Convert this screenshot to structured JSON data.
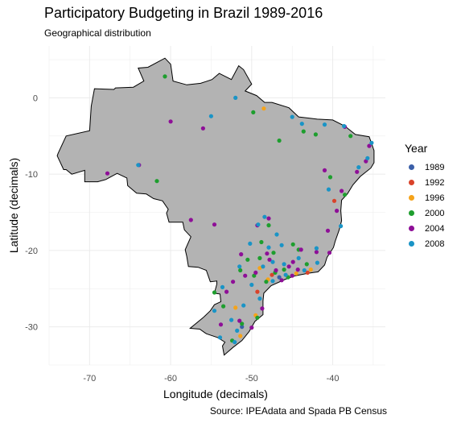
{
  "chart_data": {
    "type": "scatter",
    "title": "Participatory Budgeting in Brazil 1989-2016",
    "subtitle": "Geographical distribution",
    "caption": "Source: IPEAdata and Spada PB Census",
    "xlabel": "Longitude (decimals)",
    "ylabel": "Latitude (decimals)",
    "xlim": [
      -75,
      -33.5
    ],
    "ylim": [
      -35,
      6.8
    ],
    "x_ticks": [
      -70,
      -60,
      -50,
      -40
    ],
    "y_ticks": [
      0,
      -10,
      -20,
      -30
    ],
    "grid": true,
    "legend_title": "Year",
    "legend_position": "right",
    "series": [
      {
        "name": "1989",
        "color": "#3B5FA8",
        "points": [
          [
            -46.6,
            -23.5
          ],
          [
            -51.2,
            -30.0
          ]
        ]
      },
      {
        "name": "1992",
        "color": "#D9432A",
        "points": [
          [
            -39.8,
            -13.5
          ],
          [
            -47.5,
            -23.2
          ],
          [
            -49.3,
            -25.4
          ],
          [
            -43.1,
            -22.9
          ]
        ]
      },
      {
        "name": "1996",
        "color": "#F5A31A",
        "points": [
          [
            -48.5,
            -1.4
          ],
          [
            -49.0,
            -22.3
          ],
          [
            -48.0,
            -23.8
          ],
          [
            -52.0,
            -27.5
          ],
          [
            -44.5,
            -23.0
          ],
          [
            -51.4,
            -31.2
          ],
          [
            -42.7,
            -22.5
          ],
          [
            -49.5,
            -28.5
          ]
        ]
      },
      {
        "name": "2000",
        "color": "#1E9E2E",
        "points": [
          [
            -60.7,
            2.8
          ],
          [
            -49.8,
            -1.9
          ],
          [
            -46.6,
            -5.6
          ],
          [
            -43.6,
            -4.4
          ],
          [
            -42.1,
            -4.8
          ],
          [
            -37.8,
            -5.0
          ],
          [
            -40.3,
            -10.4
          ],
          [
            -38.5,
            -12.7
          ],
          [
            -61.7,
            -10.9
          ],
          [
            -47.9,
            -16.7
          ],
          [
            -48.8,
            -18.9
          ],
          [
            -44.2,
            -19.9
          ],
          [
            -47.3,
            -20.3
          ],
          [
            -49.0,
            -21.0
          ],
          [
            -43.2,
            -21.8
          ],
          [
            -46.0,
            -22.5
          ],
          [
            -47.1,
            -22.9
          ],
          [
            -49.7,
            -23.3
          ],
          [
            -45.5,
            -23.5
          ],
          [
            -51.4,
            -22.6
          ],
          [
            -48.2,
            -24.1
          ],
          [
            -54.6,
            -25.5
          ],
          [
            -53.5,
            -27.3
          ],
          [
            -51.2,
            -29.6
          ],
          [
            -52.4,
            -31.8
          ],
          [
            -49.3,
            -28.8
          ],
          [
            -50.5,
            -21.2
          ],
          [
            -44.9,
            -19.2
          ]
        ]
      },
      {
        "name": "2004",
        "color": "#8E0F97",
        "points": [
          [
            -60.0,
            -3.1
          ],
          [
            -56.0,
            -4.0
          ],
          [
            -38.5,
            -3.8
          ],
          [
            -35.5,
            -6.3
          ],
          [
            -35.9,
            -8.3
          ],
          [
            -37.0,
            -9.7
          ],
          [
            -41.0,
            -9.5
          ],
          [
            -38.9,
            -12.2
          ],
          [
            -39.5,
            -14.8
          ],
          [
            -40.6,
            -17.4
          ],
          [
            -63.9,
            -8.8
          ],
          [
            -67.8,
            -9.9
          ],
          [
            -54.6,
            -16.6
          ],
          [
            -57.5,
            -16.0
          ],
          [
            -49.3,
            -16.7
          ],
          [
            -47.9,
            -15.8
          ],
          [
            -51.3,
            -20.5
          ],
          [
            -47.8,
            -21.2
          ],
          [
            -44.9,
            -21.5
          ],
          [
            -42.0,
            -20.2
          ],
          [
            -43.9,
            -19.9
          ],
          [
            -49.5,
            -22.9
          ],
          [
            -47.0,
            -22.6
          ],
          [
            -45.4,
            -22.1
          ],
          [
            -50.8,
            -23.3
          ],
          [
            -52.3,
            -24.1
          ],
          [
            -53.1,
            -25.4
          ],
          [
            -48.7,
            -27.6
          ],
          [
            -51.5,
            -29.2
          ],
          [
            -53.8,
            -29.7
          ],
          [
            -50.0,
            -30.1
          ],
          [
            -46.3,
            -23.9
          ],
          [
            -44.3,
            -22.5
          ],
          [
            -48.1,
            -20.4
          ],
          [
            -40.4,
            -20.3
          ],
          [
            -45.0,
            -23.3
          ]
        ]
      },
      {
        "name": "2008",
        "color": "#1A94C6",
        "points": [
          [
            -55.0,
            -2.4
          ],
          [
            -52.0,
            -0.0
          ],
          [
            -45.0,
            -2.5
          ],
          [
            -43.8,
            -3.4
          ],
          [
            -41.0,
            -3.5
          ],
          [
            -38.6,
            -3.7
          ],
          [
            -35.2,
            -5.9
          ],
          [
            -35.7,
            -7.9
          ],
          [
            -36.8,
            -9.1
          ],
          [
            -40.5,
            -12.0
          ],
          [
            -39.0,
            -16.8
          ],
          [
            -64.0,
            -8.8
          ],
          [
            -48.4,
            -15.6
          ],
          [
            -49.2,
            -16.6
          ],
          [
            -46.9,
            -17.9
          ],
          [
            -42.0,
            -19.7
          ],
          [
            -44.2,
            -21.0
          ],
          [
            -47.4,
            -21.5
          ],
          [
            -48.6,
            -22.1
          ],
          [
            -46.0,
            -21.8
          ],
          [
            -51.5,
            -22.1
          ],
          [
            -50.0,
            -24.5
          ],
          [
            -53.6,
            -24.8
          ],
          [
            -54.6,
            -27.9
          ],
          [
            -51.0,
            -27.2
          ],
          [
            -49.0,
            -26.3
          ],
          [
            -52.5,
            -29.1
          ],
          [
            -51.8,
            -30.5
          ],
          [
            -53.9,
            -31.4
          ],
          [
            -52.1,
            -32.0
          ],
          [
            -47.4,
            -24.0
          ],
          [
            -45.8,
            -23.2
          ],
          [
            -43.5,
            -22.6
          ],
          [
            -41.9,
            -21.6
          ],
          [
            -46.3,
            -19.3
          ],
          [
            -47.9,
            -19.6
          ],
          [
            -50.2,
            -19.1
          ]
        ]
      }
    ]
  }
}
